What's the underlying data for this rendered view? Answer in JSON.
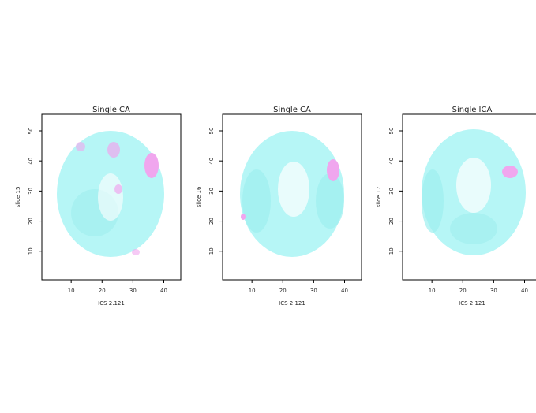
{
  "chart_data": [
    {
      "type": "heatmap",
      "title": "Single CA",
      "xlabel": "ICS 2.121",
      "ylabel": "slice 15",
      "xlim": [
        0.5,
        45.5
      ],
      "ylim": [
        0.5,
        55.5
      ],
      "xticks": [
        10,
        20,
        30,
        40
      ],
      "yticks": [
        10,
        20,
        30,
        40,
        50
      ]
    },
    {
      "type": "heatmap",
      "title": "Single CA",
      "xlabel": "ICS 2.121",
      "ylabel": "slice 16",
      "xlim": [
        0.5,
        45.5
      ],
      "ylim": [
        0.5,
        55.5
      ],
      "xticks": [
        10,
        20,
        30,
        40
      ],
      "yticks": [
        10,
        20,
        30,
        40,
        50
      ]
    },
    {
      "type": "heatmap",
      "title": "Single ICA",
      "xlabel": "ICS 2.121",
      "ylabel": "slice 17",
      "xlim": [
        0.5,
        45.5
      ],
      "ylim": [
        0.5,
        55.5
      ],
      "xticks": [
        10,
        20,
        30,
        40
      ],
      "yticks": [
        10,
        20,
        30,
        40,
        50
      ]
    }
  ]
}
